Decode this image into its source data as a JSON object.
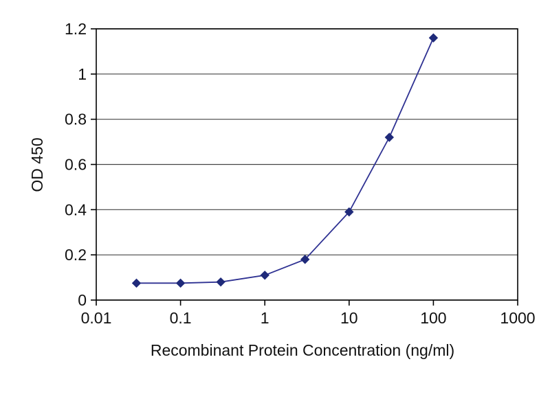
{
  "chart_data": {
    "type": "line",
    "title": "",
    "xlabel": "Recombinant Protein Concentration (ng/ml)",
    "ylabel": "OD 450",
    "x_scale": "log",
    "xlim": [
      0.01,
      1000
    ],
    "ylim": [
      0,
      1.2
    ],
    "x": [
      0.03,
      0.1,
      0.3,
      1,
      3,
      10,
      30,
      100
    ],
    "y": [
      0.075,
      0.075,
      0.08,
      0.11,
      0.18,
      0.39,
      0.72,
      1.16
    ],
    "x_tick_values": [
      0.01,
      0.1,
      1,
      10,
      100,
      1000
    ],
    "x_tick_labels": [
      "0.01",
      "0.1",
      "1",
      "10",
      "100",
      "1000"
    ],
    "y_tick_values": [
      0,
      0.2,
      0.4,
      0.6,
      0.8,
      1,
      1.2
    ],
    "y_tick_labels": [
      "0",
      "0.2",
      "0.4",
      "0.6",
      "0.8",
      "1",
      "1.2"
    ],
    "grid": "horizontal",
    "legend": "none",
    "series_name": "OD 450 vs concentration",
    "line_color": "#2e3192",
    "marker": "diamond",
    "marker_color": "#1f2a7a",
    "axis_color": "#000000",
    "grid_color": "#444444",
    "background_color": "#ffffff"
  }
}
